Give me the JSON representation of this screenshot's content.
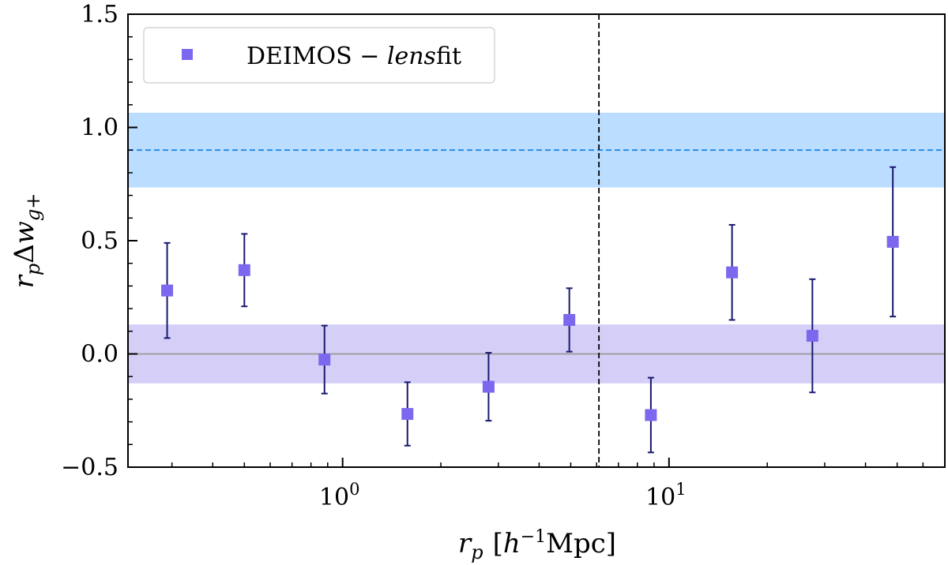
{
  "chart_data": {
    "type": "scatter",
    "x_scale": "log",
    "xlim": [
      0.22,
      70
    ],
    "ylim": [
      -0.5,
      1.5
    ],
    "xlabel": {
      "var": "r",
      "sub": "p",
      "bracket_open": "[",
      "unit_italic": "h",
      "unit_sup": "−1",
      "unit_rest": "Mpc]"
    },
    "ylabel": {
      "var": "r",
      "sub": "p",
      "delta": "Δ",
      "w": "w",
      "w_sub": "g+"
    },
    "y_ticks": [
      {
        "value": -0.5,
        "label": "−0.5"
      },
      {
        "value": 0.0,
        "label": "0.0"
      },
      {
        "value": 0.5,
        "label": "0.5"
      },
      {
        "value": 1.0,
        "label": "1.0"
      },
      {
        "value": 1.5,
        "label": "1.5"
      }
    ],
    "x_major_ticks": [
      {
        "value": 1,
        "base": "10",
        "exp": "0"
      },
      {
        "value": 10,
        "base": "10",
        "exp": "1"
      }
    ],
    "series": [
      {
        "name_plain": "DEIMOS − ",
        "name_italic": "lens",
        "name_rest": "fit",
        "marker": "square",
        "color": "#7b68ee",
        "errorbar_color": "#191970",
        "points": [
          {
            "x": 0.29,
            "y": 0.28,
            "yerr": 0.21
          },
          {
            "x": 0.5,
            "y": 0.37,
            "yerr": 0.16
          },
          {
            "x": 0.88,
            "y": -0.025,
            "yerr": 0.15
          },
          {
            "x": 1.58,
            "y": -0.265,
            "yerr": 0.14
          },
          {
            "x": 2.8,
            "y": -0.145,
            "yerr": 0.15
          },
          {
            "x": 4.95,
            "y": 0.15,
            "yerr": 0.14
          },
          {
            "x": 8.8,
            "y": -0.27,
            "yerr": 0.165
          },
          {
            "x": 15.6,
            "y": 0.36,
            "yerr": 0.21
          },
          {
            "x": 27.5,
            "y": 0.08,
            "yerr": 0.25
          },
          {
            "x": 48.5,
            "y": 0.495,
            "yerr": 0.33
          }
        ]
      }
    ],
    "bands": [
      {
        "y_center": 0.9,
        "y_low": 0.735,
        "y_high": 1.065,
        "fill": "#bbddff",
        "line_color": "#1e88e5",
        "line_style": "dashed"
      },
      {
        "y_center": 0.0,
        "y_low": -0.13,
        "y_high": 0.13,
        "fill": "#d5cff8",
        "line_color": "#999999",
        "line_style": "solid"
      }
    ],
    "reference_lines": [
      {
        "orientation": "vertical",
        "x": 6.1,
        "color": "#000000",
        "style": "dashed"
      }
    ],
    "legend": {
      "location": "upper-left"
    },
    "grid": false
  }
}
